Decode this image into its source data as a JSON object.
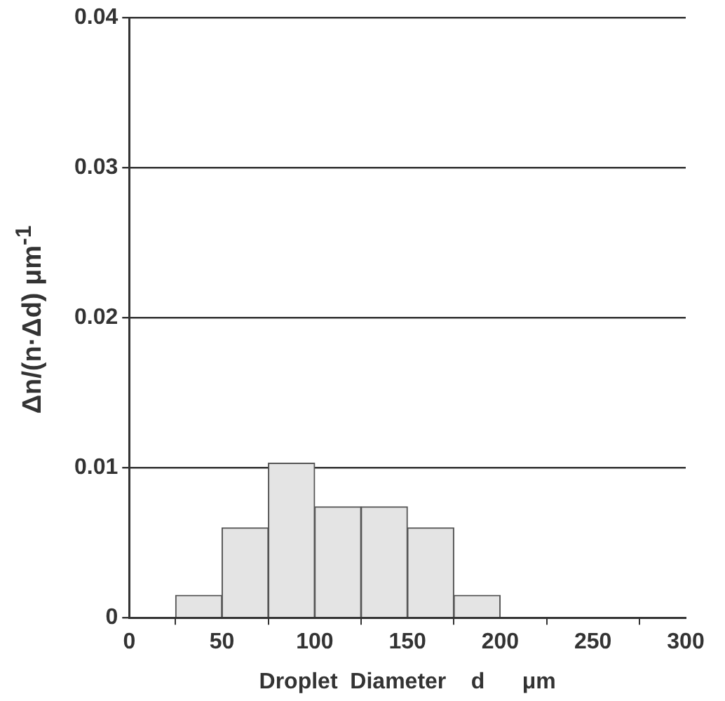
{
  "chart_data": {
    "type": "histogram",
    "xlabel": "Droplet  Diameter    d      μm",
    "ylabel": "Δn/(n·Δd)    μm$^{-1}$",
    "bins": [
      25,
      50,
      75,
      100,
      125,
      150,
      175,
      200
    ],
    "values": [
      0.0015,
      0.006,
      0.0103,
      0.0074,
      0.0074,
      0.006,
      0.0015
    ],
    "color": "#e4e4e4",
    "xlim": [
      0,
      300
    ],
    "xticks": [
      0,
      50,
      100,
      150,
      200,
      250,
      300
    ],
    "ylim": [
      0,
      0.04
    ],
    "yticks": [
      0,
      0.01,
      0.02,
      0.03,
      0.04
    ],
    "grid": "y"
  }
}
